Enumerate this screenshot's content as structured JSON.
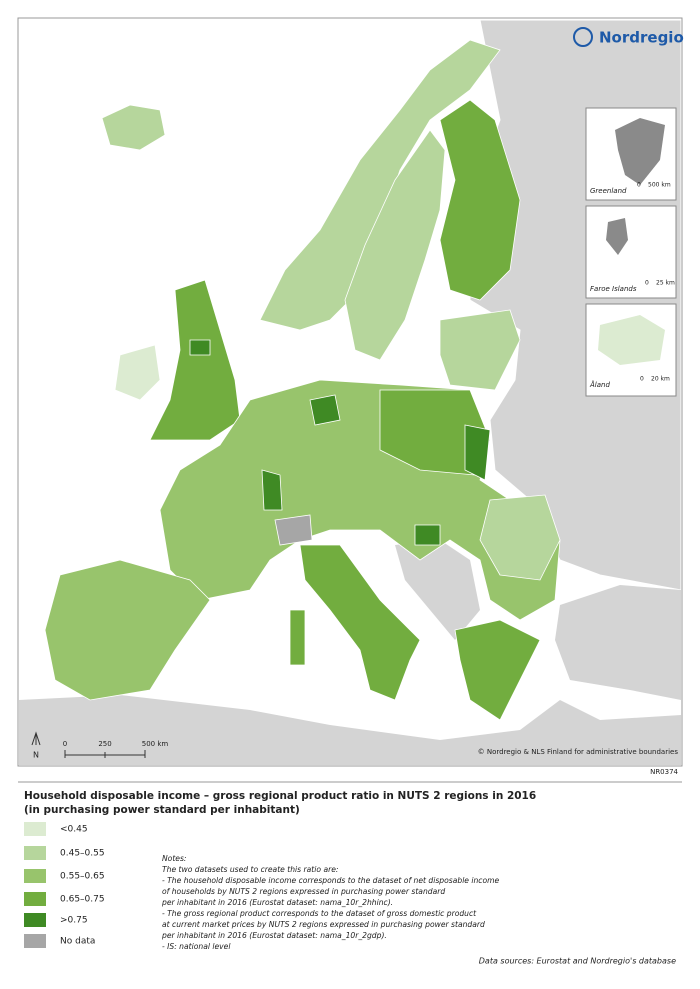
{
  "logo": "Nordregio",
  "insets": [
    {
      "label": "Greenland",
      "scale_start": "0",
      "scale_end": "500 km"
    },
    {
      "label": "Faroe Islands",
      "scale_start": "0",
      "scale_end": "25 km"
    },
    {
      "label": "Åland",
      "scale_start": "0",
      "scale_end": "20 km"
    }
  ],
  "scale_bar": {
    "labels": [
      "0",
      "250",
      "500 km"
    ],
    "north": "N"
  },
  "credit": "© Nordregio & NLS Finland for administrative boundaries",
  "map_id": "NR0374",
  "title": "Household disposable income – gross regional product ratio in NUTS 2 regions in 2016",
  "subtitle": "(in purchasing power standard per inhabitant)",
  "legend": [
    {
      "label": "<0.45",
      "color": "#dcebd1"
    },
    {
      "label": "0.45–0.55",
      "color": "#b6d69c"
    },
    {
      "label": "0.55–0.65",
      "color": "#98c46c"
    },
    {
      "label": "0.65–0.75",
      "color": "#72ad3f"
    },
    {
      "label": ">0.75",
      "color": "#3f8a24"
    },
    {
      "label": "No data",
      "color": "#a6a6a6"
    }
  ],
  "notes": [
    "Notes:",
    "The two datasets used to create this ratio are:",
    "- The household disposable income corresponds to the dataset of net disposable income",
    "of households by NUTS 2 regions expressed in purchasing power standard",
    "per inhabitant in 2016 (Eurostat dataset: nama_10r_2hhinc).",
    "- The gross regional product corresponds to the dataset of gross domestic product",
    "at current market prices by NUTS 2 regions expressed in purchasing power standard",
    "per inhabitant in 2016 (Eurostat dataset: nama_10r_2gdp).",
    "- IS: national level"
  ],
  "sources": "Data sources: Eurostat and Nordregio's database"
}
